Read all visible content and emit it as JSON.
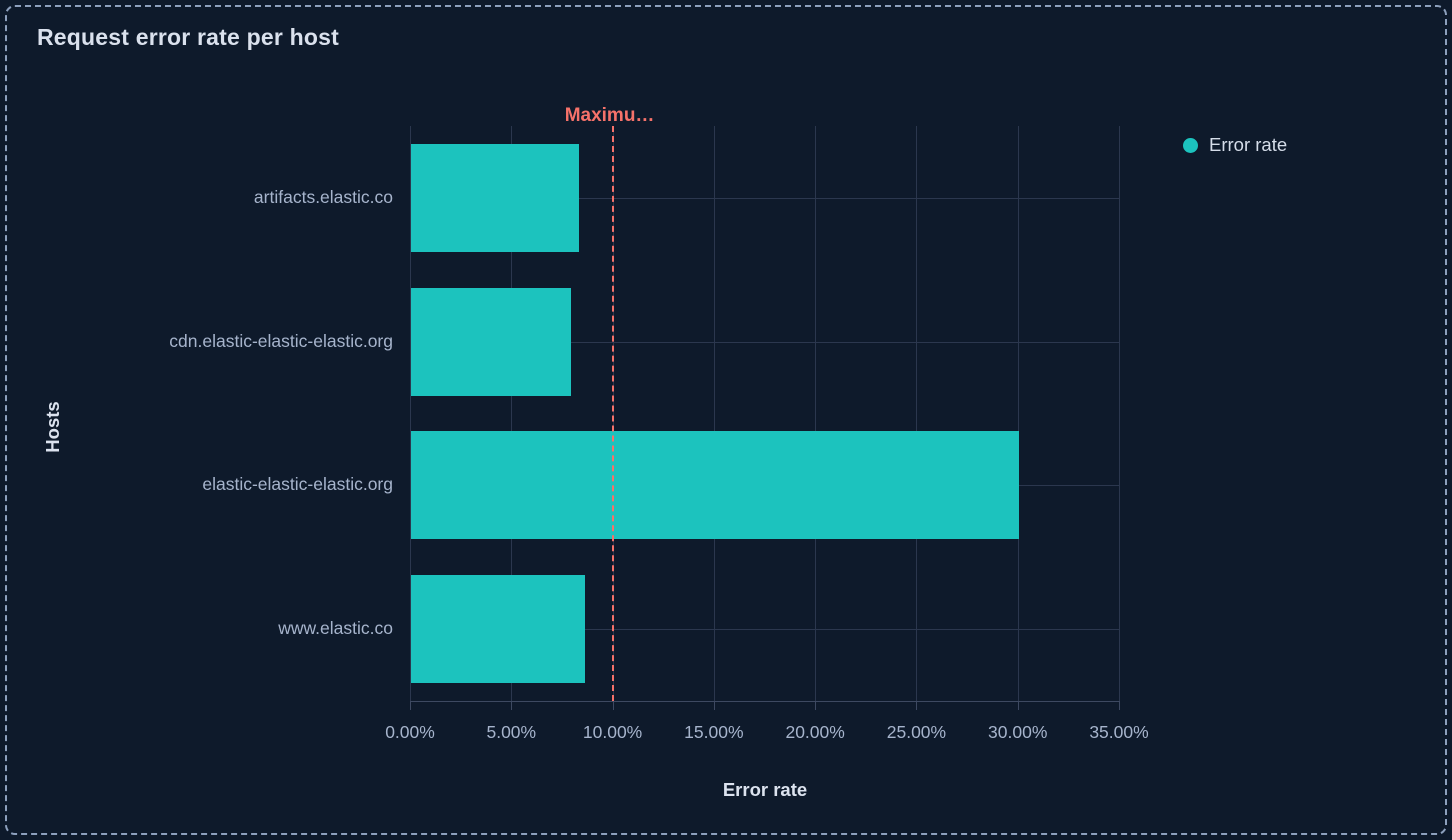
{
  "panel": {
    "title": "Request error rate per host"
  },
  "colors": {
    "background": "#0e1a2b",
    "panel_border": "#8da0bd",
    "bar": "#1cc3be",
    "annotation": "#f6726a",
    "gridline": "#2b374e",
    "axis_line": "#3d4961",
    "tick_text": "#a6b4cc",
    "title_text": "#dae1ed"
  },
  "legend": {
    "items": [
      {
        "label": "Error rate",
        "color": "#1cc3be"
      }
    ]
  },
  "chart_data": {
    "type": "bar",
    "orientation": "horizontal",
    "title": "Request error rate per host",
    "categories": [
      "artifacts.elastic.co",
      "cdn.elastic-elastic-elastic.org",
      "elastic-elastic-elastic.org",
      "www.elastic.co"
    ],
    "series": [
      {
        "name": "Error rate",
        "values": [
          8.3,
          7.9,
          30.0,
          8.6
        ]
      }
    ],
    "unit": "%",
    "xlabel": "Error rate",
    "ylabel": "Hosts",
    "xlim": [
      0,
      35
    ],
    "x_tick_values": [
      0,
      5,
      10,
      15,
      20,
      25,
      30,
      35
    ],
    "x_tick_labels": [
      "0.00%",
      "5.00%",
      "10.00%",
      "15.00%",
      "20.00%",
      "25.00%",
      "30.00%",
      "35.00%"
    ],
    "grid": true,
    "legend_position": "top-right",
    "annotations": [
      {
        "type": "vertical-line",
        "value": 10,
        "label": "Maximu…",
        "style": "dashed",
        "color": "#f6726a"
      }
    ]
  }
}
